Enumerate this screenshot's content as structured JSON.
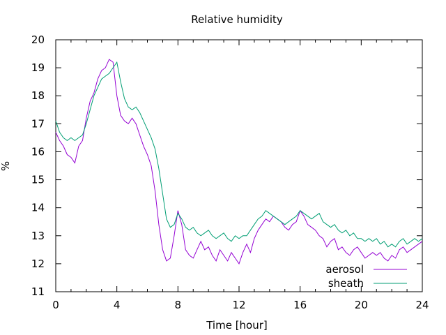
{
  "chart_data": {
    "type": "line",
    "title": "Relative humidity",
    "xlabel": "Time [hour]",
    "ylabel": "%",
    "xlim": [
      0,
      24
    ],
    "ylim": [
      11,
      20
    ],
    "xticks": [
      0,
      4,
      8,
      12,
      16,
      20,
      24
    ],
    "xtick_labels": [
      "0",
      "4",
      "8",
      "12",
      "16",
      "20",
      "24"
    ],
    "yticks": [
      11,
      12,
      13,
      14,
      15,
      16,
      17,
      18,
      19,
      20
    ],
    "ytick_labels": [
      "11",
      "12",
      "13",
      "14",
      "15",
      "16",
      "17",
      "18",
      "19",
      "20"
    ],
    "grid": false,
    "legend_position": "bottom-right",
    "series": [
      {
        "name": "aerosol",
        "color": "#9400d3",
        "x": [
          0,
          0.25,
          0.5,
          0.75,
          1,
          1.25,
          1.5,
          1.75,
          2,
          2.25,
          2.5,
          2.75,
          3,
          3.25,
          3.5,
          3.75,
          4,
          4.25,
          4.5,
          4.75,
          5,
          5.25,
          5.5,
          5.75,
          6,
          6.25,
          6.5,
          6.75,
          7,
          7.25,
          7.5,
          7.75,
          8,
          8.25,
          8.5,
          8.75,
          9,
          9.25,
          9.5,
          9.75,
          10,
          10.25,
          10.5,
          10.75,
          11,
          11.25,
          11.5,
          11.75,
          12,
          12.25,
          12.5,
          12.75,
          13,
          13.25,
          13.5,
          13.75,
          14,
          14.25,
          14.5,
          14.75,
          15,
          15.25,
          15.5,
          15.75,
          16,
          16.25,
          16.5,
          16.75,
          17,
          17.25,
          17.5,
          17.75,
          18,
          18.25,
          18.5,
          18.75,
          19,
          19.25,
          19.5,
          19.75,
          20,
          20.25,
          20.5,
          20.75,
          21,
          21.25,
          21.5,
          21.75,
          22,
          22.25,
          22.5,
          22.75,
          23,
          23.25,
          23.5,
          23.75,
          24
        ],
        "y": [
          16.7,
          16.4,
          16.2,
          15.9,
          15.8,
          15.6,
          16.2,
          16.4,
          17.2,
          17.8,
          18.1,
          18.6,
          18.9,
          19.0,
          19.3,
          19.2,
          18.0,
          17.3,
          17.1,
          17.0,
          17.2,
          17.0,
          16.6,
          16.2,
          15.9,
          15.5,
          14.6,
          13.4,
          12.5,
          12.1,
          12.2,
          13.0,
          13.9,
          13.4,
          12.5,
          12.3,
          12.2,
          12.5,
          12.8,
          12.5,
          12.6,
          12.3,
          12.1,
          12.5,
          12.3,
          12.1,
          12.4,
          12.2,
          12.0,
          12.4,
          12.7,
          12.4,
          12.9,
          13.2,
          13.4,
          13.6,
          13.5,
          13.7,
          13.6,
          13.5,
          13.3,
          13.2,
          13.4,
          13.5,
          13.9,
          13.7,
          13.4,
          13.3,
          13.2,
          13.0,
          12.9,
          12.6,
          12.8,
          12.9,
          12.5,
          12.6,
          12.4,
          12.3,
          12.5,
          12.6,
          12.4,
          12.2,
          12.3,
          12.4,
          12.3,
          12.4,
          12.2,
          12.1,
          12.3,
          12.2,
          12.5,
          12.6,
          12.4,
          12.5,
          12.6,
          12.7,
          12.8
        ]
      },
      {
        "name": "sheath",
        "color": "#009e73",
        "x": [
          0,
          0.25,
          0.5,
          0.75,
          1,
          1.25,
          1.5,
          1.75,
          2,
          2.25,
          2.5,
          2.75,
          3,
          3.25,
          3.5,
          3.75,
          4,
          4.25,
          4.5,
          4.75,
          5,
          5.25,
          5.5,
          5.75,
          6,
          6.25,
          6.5,
          6.75,
          7,
          7.25,
          7.5,
          7.75,
          8,
          8.25,
          8.5,
          8.75,
          9,
          9.25,
          9.5,
          9.75,
          10,
          10.25,
          10.5,
          10.75,
          11,
          11.25,
          11.5,
          11.75,
          12,
          12.25,
          12.5,
          12.75,
          13,
          13.25,
          13.5,
          13.75,
          14,
          14.25,
          14.5,
          14.75,
          15,
          15.25,
          15.5,
          15.75,
          16,
          16.25,
          16.5,
          16.75,
          17,
          17.25,
          17.5,
          17.75,
          18,
          18.25,
          18.5,
          18.75,
          19,
          19.25,
          19.5,
          19.75,
          20,
          20.25,
          20.5,
          20.75,
          21,
          21.25,
          21.5,
          21.75,
          22,
          22.25,
          22.5,
          22.75,
          23,
          23.25,
          23.5,
          23.75,
          24
        ],
        "y": [
          17.1,
          16.7,
          16.5,
          16.4,
          16.5,
          16.4,
          16.5,
          16.6,
          17.0,
          17.5,
          18.0,
          18.3,
          18.6,
          18.7,
          18.8,
          19.0,
          19.2,
          18.5,
          17.9,
          17.6,
          17.5,
          17.6,
          17.4,
          17.1,
          16.8,
          16.5,
          16.1,
          15.4,
          14.5,
          13.6,
          13.3,
          13.4,
          13.8,
          13.6,
          13.3,
          13.2,
          13.3,
          13.1,
          13.0,
          13.1,
          13.2,
          13.0,
          12.9,
          13.0,
          13.1,
          12.9,
          12.8,
          13.0,
          12.9,
          13.0,
          13.0,
          13.2,
          13.4,
          13.6,
          13.7,
          13.9,
          13.8,
          13.7,
          13.6,
          13.5,
          13.4,
          13.5,
          13.6,
          13.7,
          13.9,
          13.8,
          13.7,
          13.6,
          13.7,
          13.8,
          13.5,
          13.4,
          13.3,
          13.4,
          13.2,
          13.1,
          13.2,
          13.0,
          13.1,
          12.9,
          12.9,
          12.8,
          12.9,
          12.8,
          12.9,
          12.7,
          12.8,
          12.6,
          12.7,
          12.6,
          12.8,
          12.9,
          12.7,
          12.8,
          12.9,
          12.8,
          12.9
        ]
      }
    ]
  }
}
